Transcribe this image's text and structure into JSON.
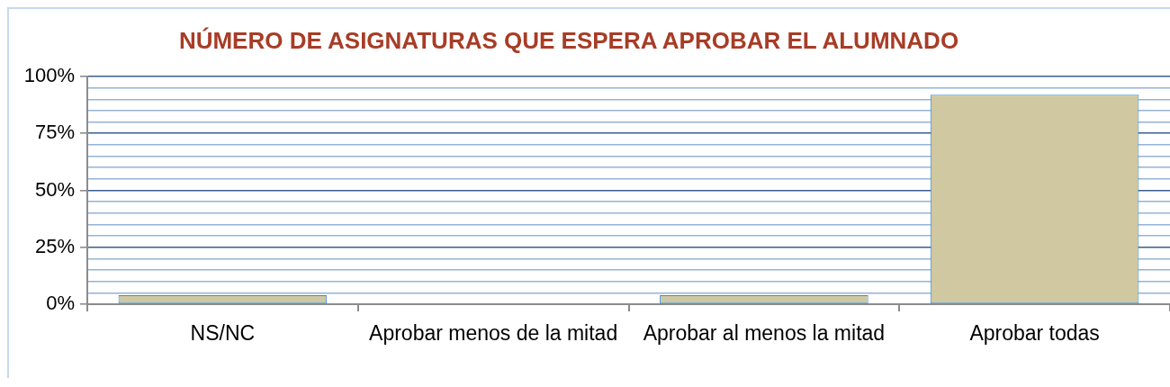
{
  "chart_data": {
    "type": "bar",
    "title": "NÚMERO DE ASIGNATURAS QUE ESPERA APROBAR EL ALUMNADO",
    "categories": [
      "NS/NC",
      "Aprobar menos de la mitad",
      "Aprobar al menos la mitad",
      "Aprobar todas"
    ],
    "values": [
      4,
      0,
      4,
      92
    ],
    "color": "#d0c8a0",
    "ylim": [
      0,
      100
    ],
    "yticks": [
      {
        "value": 0,
        "label": "0%"
      },
      {
        "value": 5,
        "label": null
      },
      {
        "value": 10,
        "label": null
      },
      {
        "value": 15,
        "label": null
      },
      {
        "value": 20,
        "label": null
      },
      {
        "value": 25,
        "label": "25%"
      },
      {
        "value": 30,
        "label": null
      },
      {
        "value": 35,
        "label": null
      },
      {
        "value": 40,
        "label": null
      },
      {
        "value": 45,
        "label": null
      },
      {
        "value": 50,
        "label": "50%"
      },
      {
        "value": 55,
        "label": null
      },
      {
        "value": 60,
        "label": null
      },
      {
        "value": 65,
        "label": null
      },
      {
        "value": 70,
        "label": null
      },
      {
        "value": 75,
        "label": "75%"
      },
      {
        "value": 80,
        "label": null
      },
      {
        "value": 85,
        "label": null
      },
      {
        "value": 90,
        "label": null
      },
      {
        "value": 95,
        "label": null
      },
      {
        "value": 100,
        "label": "100%"
      }
    ],
    "grid": "y"
  }
}
